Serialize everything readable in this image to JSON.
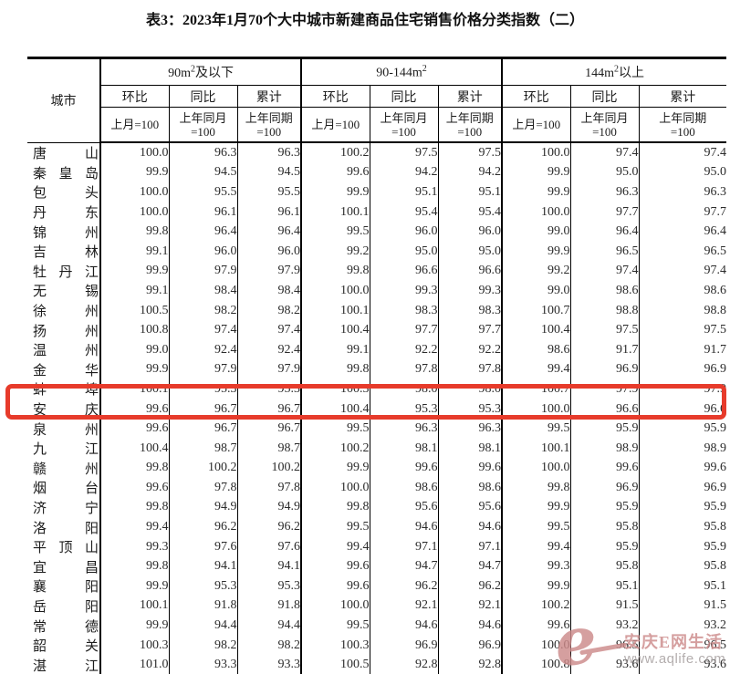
{
  "title": "表3：2023年1月70个大中城市新建商品住宅销售价格分类指数（二）",
  "table": {
    "headers": {
      "city": "城市",
      "huanbi": "环比",
      "tongbi": "同比",
      "leiji": "累计",
      "sub_huanbi": "上月=100",
      "sub_tongbi_line1": "上年同月",
      "sub_tongbi_line2": "=100",
      "sub_leiji_line1": "上年同期",
      "sub_leiji_line2": "=100"
    },
    "groups": [
      {
        "pre": "90m",
        "sup": "2",
        "post": "及以下"
      },
      {
        "pre": "90-144m",
        "sup": "2",
        "post": ""
      },
      {
        "pre": "144m",
        "sup": "2",
        "post": "以上"
      }
    ]
  },
  "rows": [
    {
      "city": "唐山",
      "values": [
        "100.0",
        "96.3",
        "96.3",
        "100.2",
        "97.5",
        "97.5",
        "100.0",
        "97.4",
        "97.4"
      ]
    },
    {
      "city": "秦皇岛",
      "values": [
        "99.9",
        "94.5",
        "94.5",
        "99.6",
        "94.2",
        "94.2",
        "99.9",
        "95.0",
        "95.0"
      ]
    },
    {
      "city": "包头",
      "values": [
        "100.0",
        "95.5",
        "95.5",
        "99.9",
        "95.1",
        "95.1",
        "99.9",
        "96.3",
        "96.3"
      ]
    },
    {
      "city": "丹东",
      "values": [
        "100.0",
        "96.1",
        "96.1",
        "100.1",
        "95.4",
        "95.4",
        "100.0",
        "97.7",
        "97.7"
      ]
    },
    {
      "city": "锦州",
      "values": [
        "99.8",
        "96.4",
        "96.4",
        "99.5",
        "96.0",
        "96.0",
        "99.0",
        "96.4",
        "96.4"
      ]
    },
    {
      "city": "吉林",
      "values": [
        "99.1",
        "96.0",
        "96.0",
        "99.2",
        "95.0",
        "95.0",
        "99.9",
        "96.5",
        "96.5"
      ]
    },
    {
      "city": "牡丹江",
      "values": [
        "99.9",
        "97.9",
        "97.9",
        "99.8",
        "96.6",
        "96.6",
        "99.2",
        "97.4",
        "97.4"
      ]
    },
    {
      "city": "无锡",
      "values": [
        "99.1",
        "98.4",
        "98.4",
        "100.0",
        "99.3",
        "99.3",
        "99.0",
        "98.6",
        "98.6"
      ]
    },
    {
      "city": "徐州",
      "values": [
        "100.5",
        "98.2",
        "98.2",
        "100.1",
        "98.3",
        "98.3",
        "100.7",
        "98.8",
        "98.8"
      ]
    },
    {
      "city": "扬州",
      "values": [
        "100.8",
        "97.4",
        "97.4",
        "100.4",
        "97.7",
        "97.7",
        "100.4",
        "97.5",
        "97.5"
      ]
    },
    {
      "city": "温州",
      "values": [
        "99.0",
        "92.4",
        "92.4",
        "99.1",
        "92.2",
        "92.2",
        "98.6",
        "91.7",
        "91.7"
      ]
    },
    {
      "city": "金华",
      "values": [
        "99.9",
        "97.9",
        "97.9",
        "99.8",
        "97.8",
        "97.8",
        "99.4",
        "96.9",
        "96.9"
      ]
    },
    {
      "city": "蚌埠",
      "values": [
        "100.1",
        "95.3",
        "95.3",
        "100.3",
        "98.0",
        "98.0",
        "100.7",
        "97.9",
        "97.9"
      ]
    },
    {
      "city": "安庆",
      "values": [
        "99.6",
        "96.7",
        "96.7",
        "100.4",
        "95.3",
        "95.3",
        "100.0",
        "96.6",
        "96.6"
      ]
    },
    {
      "city": "泉州",
      "values": [
        "99.6",
        "96.7",
        "96.7",
        "99.5",
        "96.3",
        "96.3",
        "99.5",
        "95.9",
        "95.9"
      ]
    },
    {
      "city": "九江",
      "values": [
        "100.4",
        "98.7",
        "98.7",
        "100.2",
        "98.1",
        "98.1",
        "100.1",
        "98.9",
        "98.9"
      ]
    },
    {
      "city": "赣州",
      "values": [
        "99.8",
        "100.2",
        "100.2",
        "99.9",
        "99.6",
        "99.6",
        "100.0",
        "99.6",
        "99.6"
      ]
    },
    {
      "city": "烟台",
      "values": [
        "99.6",
        "97.8",
        "97.8",
        "100.0",
        "98.6",
        "98.6",
        "99.8",
        "96.9",
        "96.9"
      ]
    },
    {
      "city": "济宁",
      "values": [
        "99.8",
        "94.9",
        "94.9",
        "99.8",
        "95.6",
        "95.6",
        "99.9",
        "95.9",
        "95.9"
      ]
    },
    {
      "city": "洛阳",
      "values": [
        "99.4",
        "96.2",
        "96.2",
        "99.5",
        "94.6",
        "94.6",
        "99.5",
        "95.8",
        "95.8"
      ]
    },
    {
      "city": "平顶山",
      "values": [
        "99.3",
        "97.6",
        "97.6",
        "99.4",
        "97.1",
        "97.1",
        "99.4",
        "95.9",
        "95.9"
      ]
    },
    {
      "city": "宜昌",
      "values": [
        "99.8",
        "94.1",
        "94.1",
        "99.6",
        "94.7",
        "94.7",
        "99.3",
        "95.8",
        "95.8"
      ]
    },
    {
      "city": "襄阳",
      "values": [
        "99.9",
        "95.3",
        "95.3",
        "99.6",
        "96.2",
        "96.2",
        "99.9",
        "95.1",
        "95.1"
      ]
    },
    {
      "city": "岳阳",
      "values": [
        "100.1",
        "91.8",
        "91.8",
        "100.0",
        "92.1",
        "92.1",
        "100.2",
        "91.5",
        "91.5"
      ]
    },
    {
      "city": "常德",
      "values": [
        "99.9",
        "94.4",
        "94.4",
        "99.5",
        "94.6",
        "94.6",
        "99.6",
        "93.2",
        "93.2"
      ]
    },
    {
      "city": "韶关",
      "values": [
        "100.3",
        "98.2",
        "98.2",
        "100.3",
        "96.9",
        "96.9",
        "100.0",
        "96.5",
        "96.5"
      ]
    },
    {
      "city": "湛江",
      "values": [
        "101.0",
        "93.3",
        "93.3",
        "100.5",
        "92.8",
        "92.8",
        "100.8",
        "93.6",
        "93.6"
      ]
    }
  ],
  "highlight": {
    "city": "安庆",
    "box_color": "#e73b2b"
  },
  "watermark": {
    "logo": "e",
    "text": "安庆E网生活",
    "url": "www.aqlife.com"
  }
}
